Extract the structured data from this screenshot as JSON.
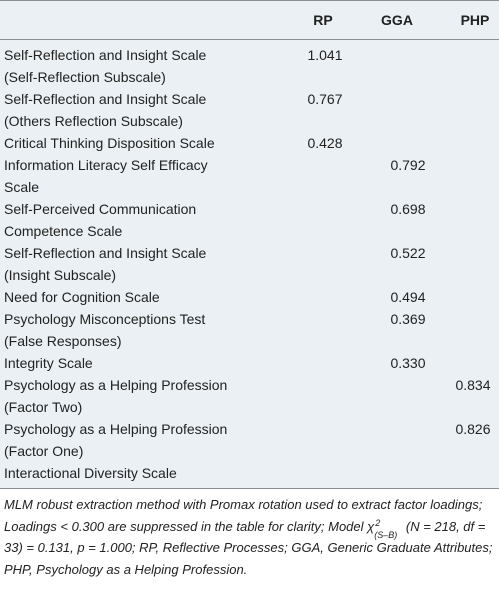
{
  "table": {
    "columns": {
      "rp": "RP",
      "gga": "GGA",
      "php": "PHP"
    },
    "rows": [
      {
        "label_lines": [
          "Self-Reflection and Insight Scale",
          "(Self-Reflection Subscale)"
        ],
        "rp": "1.041",
        "gga": "",
        "php": ""
      },
      {
        "label_lines": [
          "Self-Reflection and Insight Scale",
          "(Others Reflection Subscale)"
        ],
        "rp": "0.767",
        "gga": "",
        "php": ""
      },
      {
        "label_lines": [
          "Critical Thinking Disposition Scale"
        ],
        "rp": "0.428",
        "gga": "",
        "php": ""
      },
      {
        "label_lines": [
          "Information Literacy Self Efficacy",
          "Scale"
        ],
        "rp": "",
        "gga": "0.792",
        "php": ""
      },
      {
        "label_lines": [
          "Self-Perceived Communication",
          "Competence Scale"
        ],
        "rp": "",
        "gga": "0.698",
        "php": ""
      },
      {
        "label_lines": [
          "Self-Reflection and Insight Scale",
          "(Insight Subscale)"
        ],
        "rp": "",
        "gga": "0.522",
        "php": ""
      },
      {
        "label_lines": [
          "Need for Cognition Scale"
        ],
        "rp": "",
        "gga": "0.494",
        "php": ""
      },
      {
        "label_lines": [
          "Psychology Misconceptions Test",
          "(False Responses)"
        ],
        "rp": "",
        "gga": "0.369",
        "php": ""
      },
      {
        "label_lines": [
          "Integrity Scale"
        ],
        "rp": "",
        "gga": "0.330",
        "php": ""
      },
      {
        "label_lines": [
          "Psychology as a Helping Profession",
          "(Factor Two)"
        ],
        "rp": "",
        "gga": "",
        "php": "0.834"
      },
      {
        "label_lines": [
          "Psychology as a Helping Profession",
          "(Factor One)"
        ],
        "rp": "",
        "gga": "",
        "php": "0.826"
      },
      {
        "label_lines": [
          "Interactional Diversity Scale"
        ],
        "rp": "",
        "gga": "",
        "php": ""
      }
    ]
  },
  "note": {
    "part1": "MLM robust extraction method with Promax rotation used to extract factor loadings; Loadings < 0.300 are suppressed in the table for clarity; Model ",
    "chi_symbol": "χ",
    "chi_sup": "2",
    "chi_sub": "(S–B)",
    "part2": " (N = 218, df = 33) = 0.131, p = 1.000; RP, Reflective Processes; GGA, Generic Graduate Attributes; PHP, Psychology as a Helping Profession."
  }
}
